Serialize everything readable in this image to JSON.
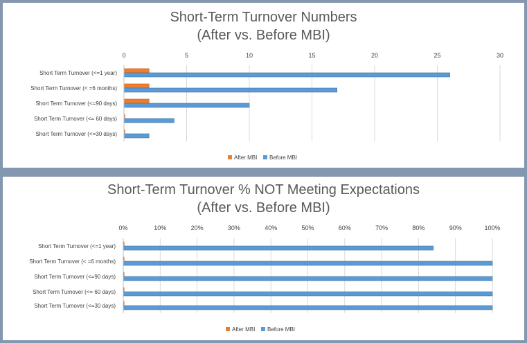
{
  "chart_data": [
    {
      "type": "bar",
      "orientation": "horizontal",
      "title": "Short-Term Turnover Numbers",
      "subtitle": "(After vs. Before MBI)",
      "categories": [
        "Short Term Turnover (<=1 year)",
        "Short Term Turnover (< =6 months)",
        "Short Term Turnover (<=90 days)",
        "Short Term Turnover (<= 60 days)",
        "Short Term Turnover (<=30 days)"
      ],
      "series": [
        {
          "name": "After MBI",
          "values": [
            2,
            2,
            2,
            0,
            0
          ]
        },
        {
          "name": "Before MBI",
          "values": [
            26,
            17,
            10,
            4,
            2
          ]
        }
      ],
      "xlim": [
        0,
        30
      ],
      "ticks": [
        "0",
        "5",
        "10",
        "15",
        "20",
        "25",
        "30"
      ],
      "tick_values": [
        0,
        5,
        10,
        15,
        20,
        25,
        30
      ],
      "axis_position": "top",
      "grid": true,
      "legend": "bottom",
      "colors": {
        "After MBI": "#ed7d31",
        "Before MBI": "#5b9bd5"
      }
    },
    {
      "type": "bar",
      "orientation": "horizontal",
      "title": "Short-Term Turnover % NOT Meeting Expectations",
      "subtitle": "(After vs. Before MBI)",
      "categories": [
        "Short Term Turnover (<=1 year)",
        "Short Term Turnover (< =6 months)",
        "Short Term Turnover (<=90 days)",
        "Short Term Turnover (<= 60 days)",
        "Short Term Turnover (<=30 days)"
      ],
      "series": [
        {
          "name": "After MBI",
          "values": [
            0,
            0,
            0,
            0,
            0
          ]
        },
        {
          "name": "Before MBI",
          "values": [
            0.84,
            1.0,
            1.0,
            1.0,
            1.0
          ]
        }
      ],
      "xlim": [
        0,
        1
      ],
      "ticks": [
        "0%",
        "10%",
        "20%",
        "30%",
        "40%",
        "50%",
        "60%",
        "70%",
        "80%",
        "90%",
        "100%"
      ],
      "tick_values": [
        0,
        0.1,
        0.2,
        0.3,
        0.4,
        0.5,
        0.6,
        0.7,
        0.8,
        0.9,
        1.0
      ],
      "axis_position": "top",
      "grid": true,
      "legend": "bottom",
      "colors": {
        "After MBI": "#ed7d31",
        "Before MBI": "#5b9bd5"
      }
    }
  ]
}
